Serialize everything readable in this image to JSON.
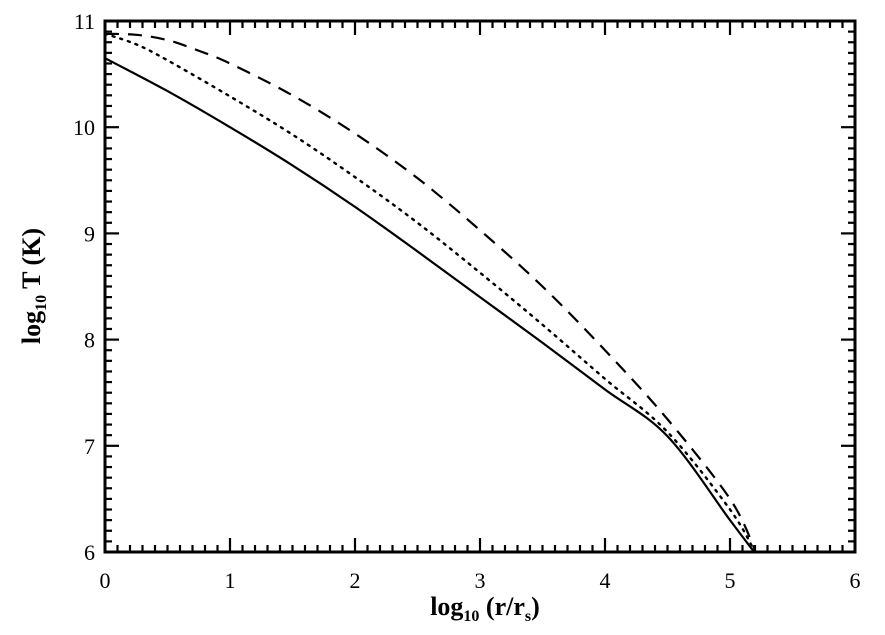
{
  "chart_data": {
    "type": "line",
    "title": "",
    "xlabel": {
      "prefix": "log",
      "sub": "10",
      "mid": " (r/r",
      "sub2": "s",
      "suffix": ")"
    },
    "ylabel": {
      "prefix": "log",
      "sub": "10",
      "suffix": " T (K)"
    },
    "xlim": [
      0,
      6
    ],
    "ylim": [
      6,
      11
    ],
    "xticks": [
      "0",
      "1",
      "2",
      "3",
      "4",
      "5",
      "6"
    ],
    "yticks": [
      "6",
      "7",
      "8",
      "9",
      "10",
      "11"
    ],
    "grid": false,
    "legend": "none",
    "series": [
      {
        "style": "solid",
        "x": [
          0,
          0.5,
          1.0,
          1.5,
          2.0,
          2.5,
          3.0,
          3.5,
          4.0,
          4.5,
          5.0,
          5.2
        ],
        "y": [
          10.65,
          10.34,
          10.0,
          9.64,
          9.25,
          8.83,
          8.4,
          7.97,
          7.53,
          7.09,
          6.3,
          5.99
        ]
      },
      {
        "style": "dotted",
        "x": [
          0,
          0.25,
          0.5,
          1.0,
          1.5,
          2.0,
          2.5,
          3.0,
          3.5,
          4.0,
          4.5,
          5.0,
          5.2
        ],
        "y": [
          10.88,
          10.78,
          10.63,
          10.29,
          9.93,
          9.53,
          9.1,
          8.63,
          8.14,
          7.63,
          7.13,
          6.4,
          6.0
        ]
      },
      {
        "style": "dashed",
        "x": [
          0,
          0.25,
          0.5,
          0.75,
          1.0,
          1.5,
          2.0,
          2.5,
          3.0,
          3.5,
          4.0,
          4.5,
          5.0,
          5.2
        ],
        "y": [
          10.88,
          10.87,
          10.82,
          10.72,
          10.6,
          10.3,
          9.94,
          9.52,
          9.03,
          8.5,
          7.9,
          7.25,
          6.5,
          6.02
        ]
      }
    ]
  }
}
